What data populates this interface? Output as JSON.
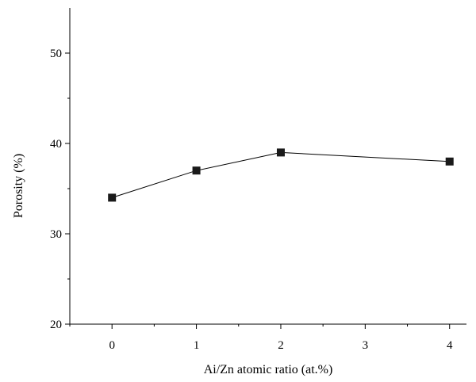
{
  "chart_data": {
    "type": "line",
    "title": "",
    "xlabel": "Ai/Zn atomic ratio (at.%)",
    "ylabel": "Porosity (%)",
    "x_ticks": [
      0,
      1,
      2,
      3,
      4
    ],
    "y_ticks": [
      20,
      30,
      40,
      50
    ],
    "xlim": [
      -0.5,
      4.2
    ],
    "ylim": [
      20,
      55
    ],
    "grid": false,
    "legend": "none",
    "series": [
      {
        "x": [
          0,
          1,
          2,
          4
        ],
        "values": [
          34,
          37,
          39,
          38
        ],
        "marker": "square",
        "color": "#1a1a1a"
      }
    ]
  }
}
